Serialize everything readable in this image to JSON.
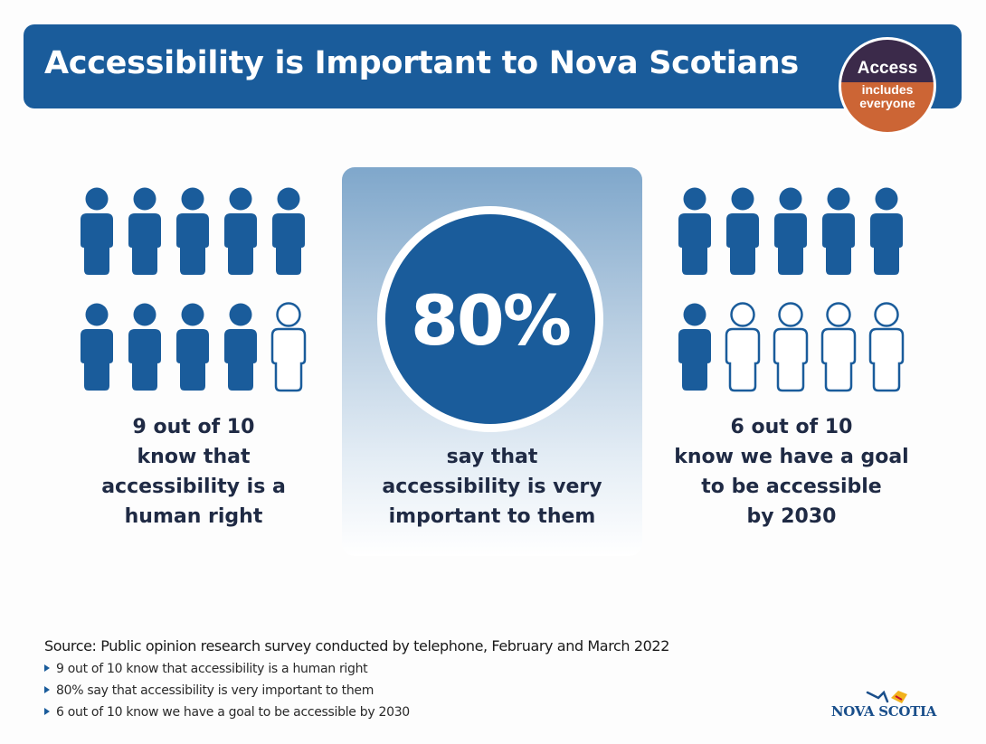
{
  "header": {
    "title": "Accessibility is Important to Nova Scotians",
    "badge_line1": "Access",
    "badge_line2a": "includes",
    "badge_line2b": "everyone"
  },
  "stats": [
    {
      "id": "human-right",
      "people_filled": 9,
      "people_total": 10,
      "caption": [
        "9 out of 10",
        "know that",
        "accessibility is a",
        "human right"
      ]
    },
    {
      "id": "very-important",
      "percent": "80%",
      "percent_value": 80,
      "caption": [
        "say that",
        "accessibility is very",
        "important to them"
      ]
    },
    {
      "id": "goal-2030",
      "people_filled": 6,
      "people_total": 10,
      "caption": [
        "6 out of 10",
        "know we have a goal",
        "to be accessible",
        "by 2030"
      ]
    }
  ],
  "source": {
    "heading": "Source: Public opinion research survey conducted by telephone, February and March 2022",
    "bullets": [
      "9 out of 10 know that accessibility is a human right",
      "80% say that accessibility is very important to them",
      "6 out of 10 know we have a goal to be accessible by 2030"
    ]
  },
  "logo": {
    "text": "NOVA SCOTIA"
  },
  "colors": {
    "brand_blue": "#1a5c9b",
    "badge_purple": "#3b2a4a",
    "badge_orange": "#cc6535"
  }
}
